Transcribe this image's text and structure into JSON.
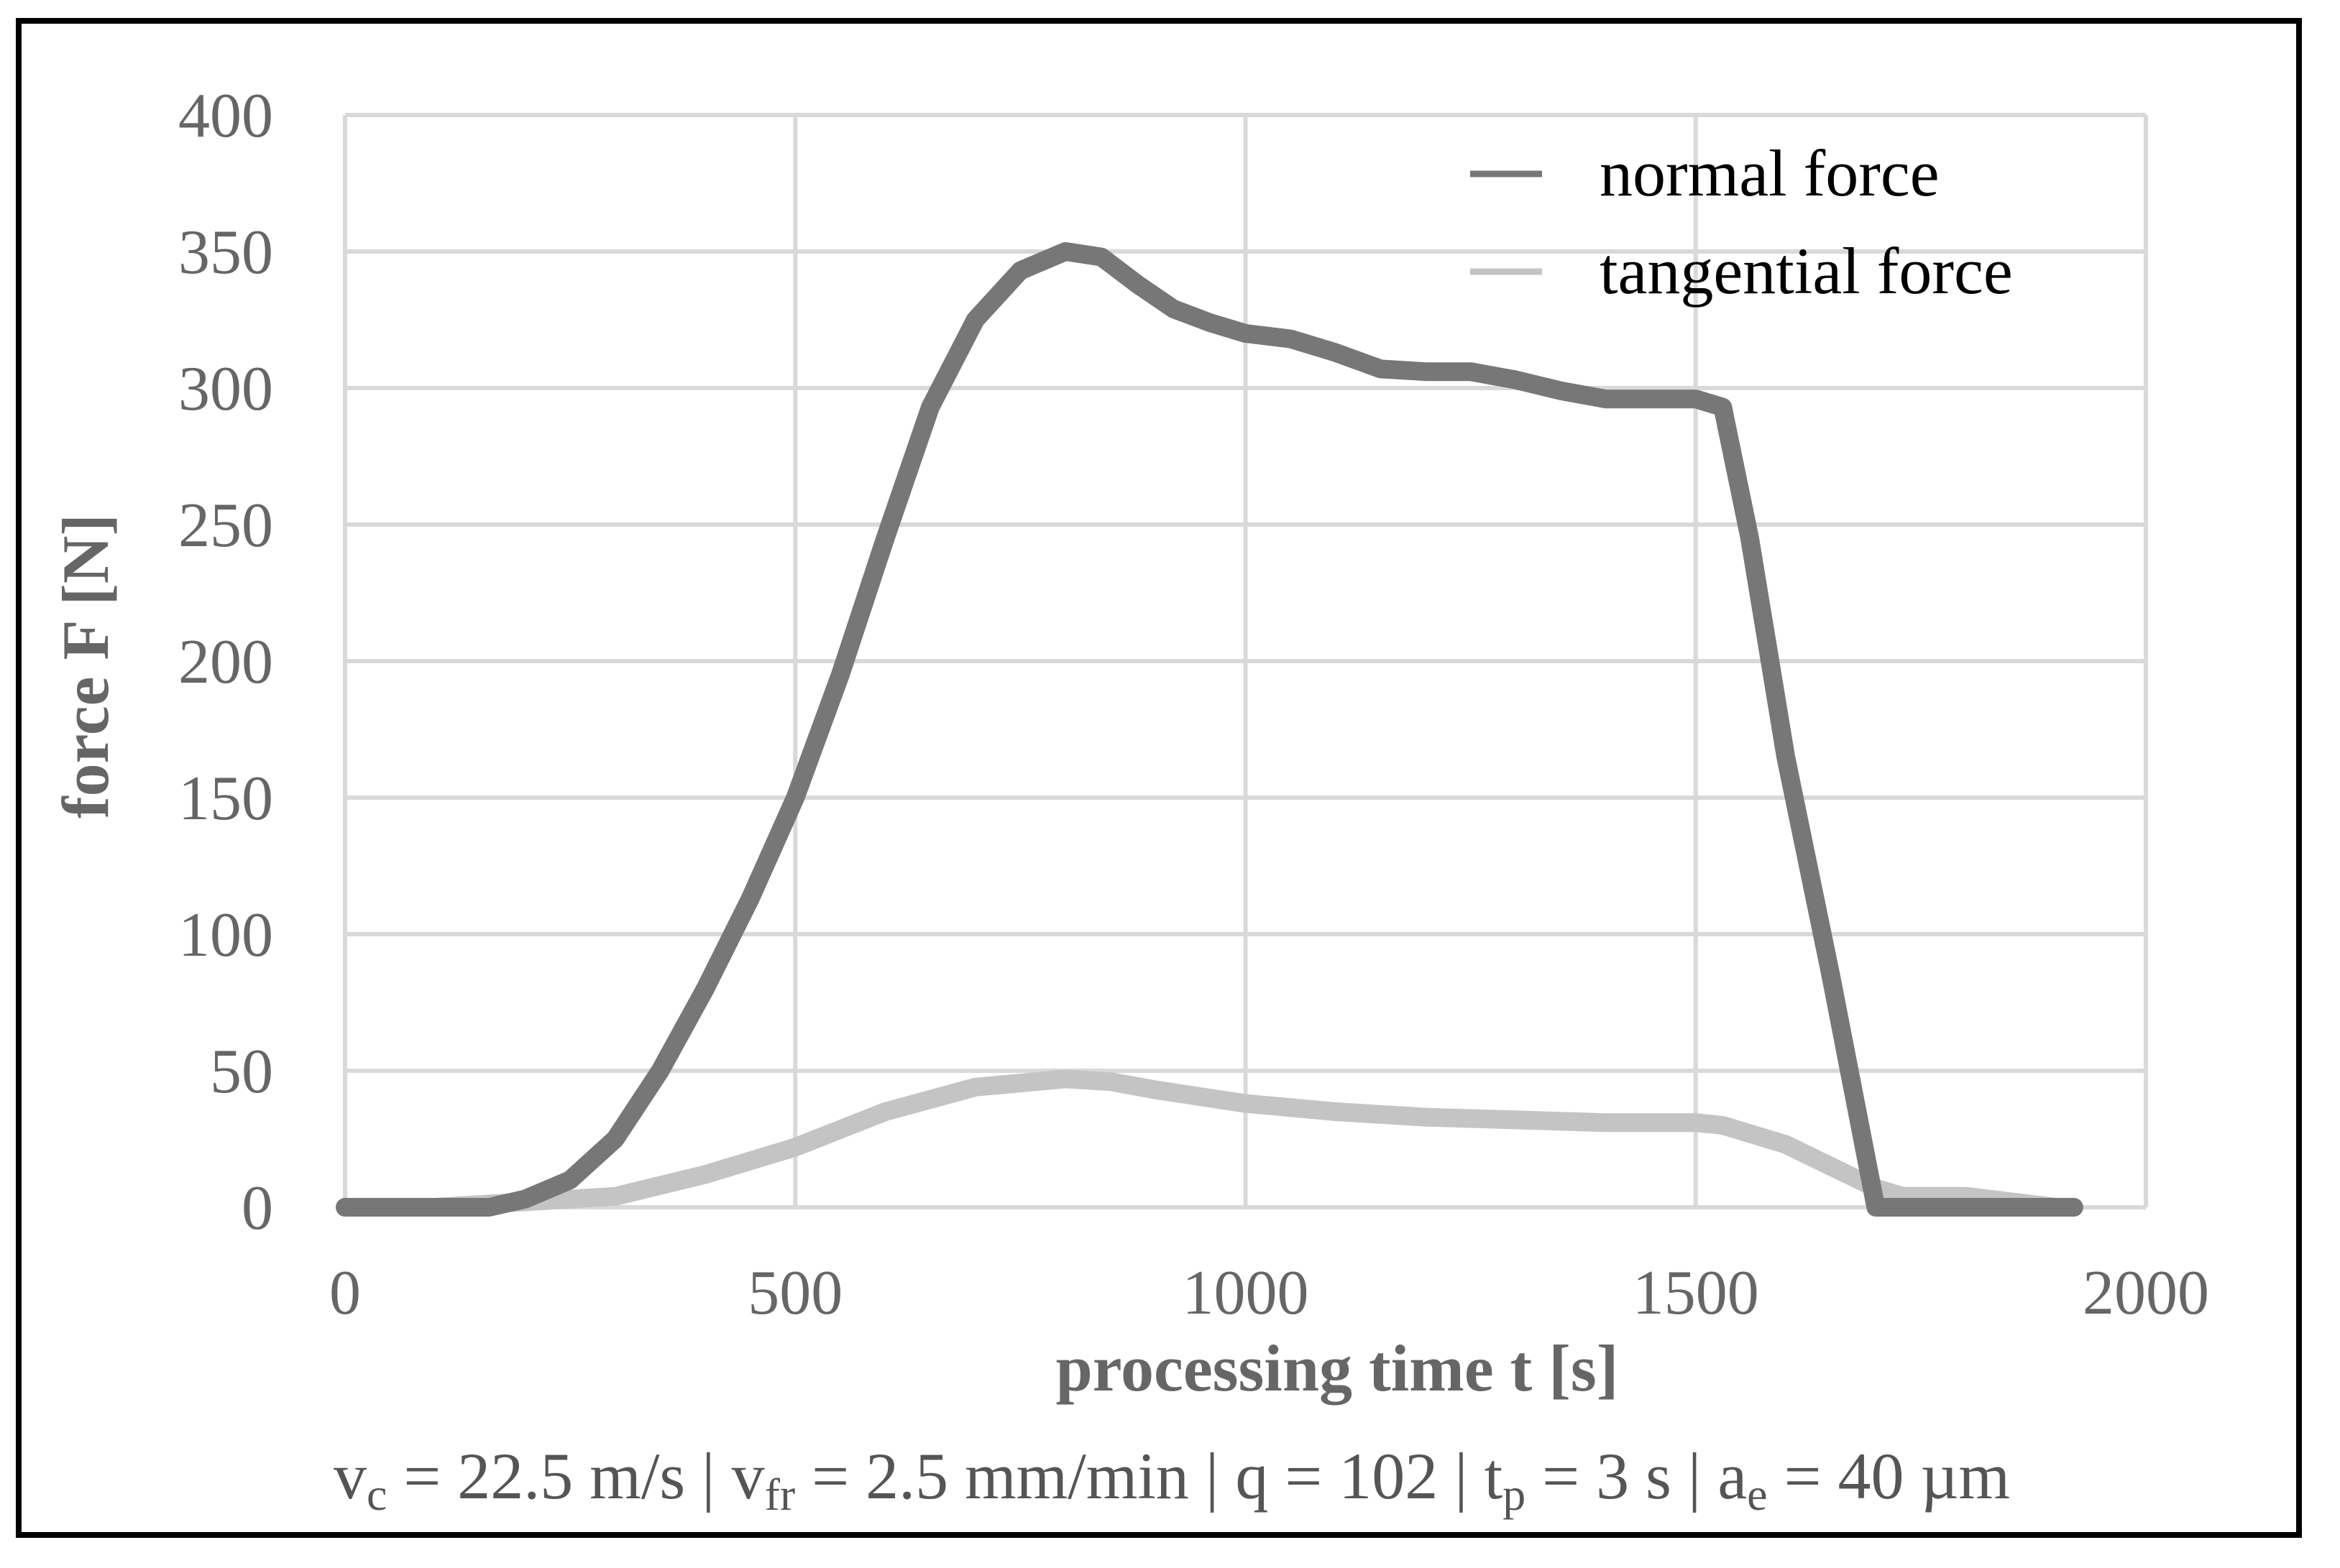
{
  "chart_data": {
    "type": "line",
    "title": "",
    "xlabel": "processing time t [s]",
    "ylabel": "force F [N]",
    "xlim": [
      0,
      2000
    ],
    "ylim": [
      0,
      400
    ],
    "xticks": [
      0,
      500,
      1000,
      1500,
      2000
    ],
    "yticks": [
      0,
      50,
      100,
      150,
      200,
      250,
      300,
      350,
      400
    ],
    "xtick_labels": [
      "0",
      "500",
      "1000",
      "1500",
      "2000"
    ],
    "ytick_labels": [
      "0",
      "50",
      "100",
      "150",
      "200",
      "250",
      "300",
      "350",
      "400"
    ],
    "grid": true,
    "legend_position": "top-right",
    "series": [
      {
        "name": "normal force",
        "color": "#777777",
        "x": [
          0,
          100,
          160,
          200,
          250,
          300,
          350,
          400,
          450,
          500,
          550,
          600,
          650,
          700,
          750,
          800,
          840,
          880,
          920,
          960,
          1000,
          1050,
          1100,
          1150,
          1200,
          1250,
          1300,
          1350,
          1400,
          1450,
          1500,
          1530,
          1560,
          1600,
          1650,
          1700,
          1740,
          1800,
          1850,
          1900,
          1920
        ],
        "y": [
          0,
          0,
          0,
          3,
          10,
          25,
          50,
          80,
          113,
          150,
          195,
          245,
          293,
          325,
          343,
          350,
          348,
          338,
          329,
          324,
          320,
          318,
          313,
          307,
          306,
          306,
          303,
          299,
          296,
          296,
          296,
          293,
          245,
          165,
          85,
          0,
          0,
          0,
          0,
          0,
          0
        ]
      },
      {
        "name": "tangential force",
        "color": "#c4c4c4",
        "x": [
          0,
          100,
          200,
          300,
          400,
          500,
          600,
          700,
          800,
          850,
          900,
          1000,
          1100,
          1200,
          1300,
          1400,
          1450,
          1500,
          1530,
          1600,
          1650,
          1700,
          1730,
          1800,
          1900,
          1920
        ],
        "y": [
          0,
          0,
          2,
          4,
          12,
          22,
          35,
          44,
          47,
          46,
          43,
          38,
          35,
          33,
          32,
          31,
          31,
          31,
          30,
          23,
          15,
          7,
          4,
          4,
          0,
          0
        ]
      }
    ]
  },
  "parameters_line": {
    "vc_var": "v",
    "vc_sub": "c",
    "vc_rest": " = 22.5 m/s | ",
    "vfr_var": "v",
    "vfr_sub": "fr",
    "vfr_rest": " = 2.5 mm/min | q = 102 | ",
    "tp_var": "t",
    "tp_sub": "p",
    "tp_rest": " = 3 s | ",
    "ae_var": "a",
    "ae_sub": "e",
    "ae_rest": " = 40 µm"
  },
  "colors": {
    "grid": "#d9d9d9",
    "tick_text": "#666666",
    "axis_title": "#666666"
  }
}
